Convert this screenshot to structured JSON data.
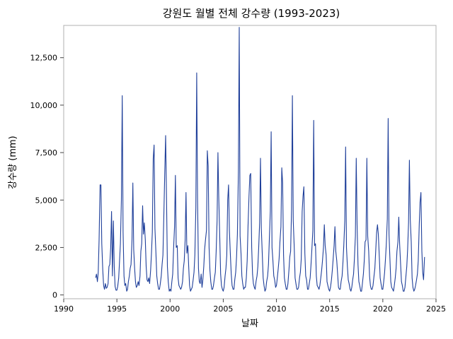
{
  "chart_data": {
    "type": "line",
    "title": "강원도 월별 전체 강수량 (1993-2023)",
    "xlabel": "날짜",
    "ylabel": "강수량 (mm)",
    "xlim": [
      1990,
      2025
    ],
    "ylim": [
      -200,
      14200
    ],
    "x_ticks": [
      1990,
      1995,
      2000,
      2005,
      2010,
      2015,
      2020,
      2025
    ],
    "x_tick_labels": [
      "1990",
      "1995",
      "2000",
      "2005",
      "2010",
      "2015",
      "2020",
      "2025"
    ],
    "y_ticks": [
      0,
      2500,
      5000,
      7500,
      10000,
      12500
    ],
    "y_tick_labels": [
      "0",
      "2,500",
      "5,000",
      "7,500",
      "10,000",
      "12,500"
    ],
    "grid": false,
    "legend": "none",
    "line_color": "#1f3f9a",
    "series": [
      {
        "x": [
          1993.0,
          1993.08,
          1993.17,
          1993.25,
          1993.33,
          1993.42,
          1993.5,
          1993.58,
          1993.67,
          1993.75,
          1993.83,
          1993.92,
          1994.0,
          1994.08,
          1994.17,
          1994.25,
          1994.33,
          1994.42,
          1994.5,
          1994.58,
          1994.67,
          1994.75,
          1994.83,
          1994.92,
          1995.0,
          1995.08,
          1995.17,
          1995.25,
          1995.33,
          1995.42,
          1995.5,
          1995.58,
          1995.67,
          1995.75,
          1995.83,
          1995.92,
          1996.0,
          1996.08,
          1996.17,
          1996.25,
          1996.33,
          1996.42,
          1996.5,
          1996.58,
          1996.67,
          1996.75,
          1996.83,
          1996.92,
          1997.0,
          1997.08,
          1997.17,
          1997.25,
          1997.33,
          1997.42,
          1997.5,
          1997.58,
          1997.67,
          1997.75,
          1997.83,
          1997.92,
          1998.0,
          1998.08,
          1998.17,
          1998.25,
          1998.33,
          1998.42,
          1998.5,
          1998.58,
          1998.67,
          1998.75,
          1998.83,
          1998.92,
          1999.0,
          1999.08,
          1999.17,
          1999.25,
          1999.33,
          1999.42,
          1999.5,
          1999.58,
          1999.67,
          1999.75,
          1999.83,
          1999.92,
          2000.0,
          2000.08,
          2000.17,
          2000.25,
          2000.33,
          2000.42,
          2000.5,
          2000.58,
          2000.67,
          2000.75,
          2000.83,
          2000.92,
          2001.0,
          2001.08,
          2001.17,
          2001.25,
          2001.33,
          2001.42,
          2001.5,
          2001.58,
          2001.67,
          2001.75,
          2001.83,
          2001.92,
          2002.0,
          2002.08,
          2002.17,
          2002.25,
          2002.33,
          2002.42,
          2002.5,
          2002.58,
          2002.67,
          2002.75,
          2002.83,
          2002.92,
          2003.0,
          2003.08,
          2003.17,
          2003.25,
          2003.33,
          2003.42,
          2003.5,
          2003.58,
          2003.67,
          2003.75,
          2003.83,
          2003.92,
          2004.0,
          2004.08,
          2004.17,
          2004.25,
          2004.33,
          2004.42,
          2004.5,
          2004.58,
          2004.67,
          2004.75,
          2004.83,
          2004.92,
          2005.0,
          2005.08,
          2005.17,
          2005.25,
          2005.33,
          2005.42,
          2005.5,
          2005.58,
          2005.67,
          2005.75,
          2005.83,
          2005.92,
          2006.0,
          2006.08,
          2006.17,
          2006.25,
          2006.33,
          2006.42,
          2006.5,
          2006.58,
          2006.67,
          2006.75,
          2006.83,
          2006.92,
          2007.0,
          2007.08,
          2007.17,
          2007.25,
          2007.33,
          2007.42,
          2007.5,
          2007.58,
          2007.67,
          2007.75,
          2007.83,
          2007.92,
          2008.0,
          2008.08,
          2008.17,
          2008.25,
          2008.33,
          2008.42,
          2008.5,
          2008.58,
          2008.67,
          2008.75,
          2008.83,
          2008.92,
          2009.0,
          2009.08,
          2009.17,
          2009.25,
          2009.33,
          2009.42,
          2009.5,
          2009.58,
          2009.67,
          2009.75,
          2009.83,
          2009.92,
          2010.0,
          2010.08,
          2010.17,
          2010.25,
          2010.33,
          2010.42,
          2010.5,
          2010.58,
          2010.67,
          2010.75,
          2010.83,
          2010.92,
          2011.0,
          2011.08,
          2011.17,
          2011.25,
          2011.33,
          2011.42,
          2011.5,
          2011.58,
          2011.67,
          2011.75,
          2011.83,
          2011.92,
          2012.0,
          2012.08,
          2012.17,
          2012.25,
          2012.33,
          2012.42,
          2012.5,
          2012.58,
          2012.67,
          2012.75,
          2012.83,
          2012.92,
          2013.0,
          2013.08,
          2013.17,
          2013.25,
          2013.33,
          2013.42,
          2013.5,
          2013.58,
          2013.67,
          2013.75,
          2013.83,
          2013.92,
          2014.0,
          2014.08,
          2014.17,
          2014.25,
          2014.33,
          2014.42,
          2014.5,
          2014.58,
          2014.67,
          2014.75,
          2014.83,
          2014.92,
          2015.0,
          2015.08,
          2015.17,
          2015.25,
          2015.33,
          2015.42,
          2015.5,
          2015.58,
          2015.67,
          2015.75,
          2015.83,
          2015.92,
          2016.0,
          2016.08,
          2016.17,
          2016.25,
          2016.33,
          2016.42,
          2016.5,
          2016.58,
          2016.67,
          2016.75,
          2016.83,
          2016.92,
          2017.0,
          2017.08,
          2017.17,
          2017.25,
          2017.33,
          2017.42,
          2017.5,
          2017.58,
          2017.67,
          2017.75,
          2017.83,
          2017.92,
          2018.0,
          2018.08,
          2018.17,
          2018.25,
          2018.33,
          2018.42,
          2018.5,
          2018.58,
          2018.67,
          2018.75,
          2018.83,
          2018.92,
          2019.0,
          2019.08,
          2019.17,
          2019.25,
          2019.33,
          2019.42,
          2019.5,
          2019.58,
          2019.67,
          2019.75,
          2019.83,
          2019.92,
          2020.0,
          2020.08,
          2020.17,
          2020.25,
          2020.33,
          2020.42,
          2020.5,
          2020.58,
          2020.67,
          2020.75,
          2020.83,
          2020.92,
          2021.0,
          2021.08,
          2021.17,
          2021.25,
          2021.33,
          2021.42,
          2021.5,
          2021.58,
          2021.67,
          2021.75,
          2021.83,
          2021.92,
          2022.0,
          2022.08,
          2022.17,
          2022.25,
          2022.33,
          2022.42,
          2022.5,
          2022.58,
          2022.67,
          2022.75,
          2022.83,
          2022.92,
          2023.0,
          2023.08,
          2023.17,
          2023.25,
          2023.33,
          2023.42,
          2023.5,
          2023.58,
          2023.67,
          2023.75,
          2023.83,
          2023.92
        ],
        "y": [
          900,
          1100,
          700,
          1200,
          2900,
          5800,
          5800,
          2700,
          1300,
          500,
          300,
          600,
          350,
          400,
          600,
          1500,
          1600,
          2500,
          4400,
          1000,
          3900,
          1500,
          450,
          250,
          250,
          450,
          900,
          1800,
          2700,
          5000,
          10500,
          3300,
          1000,
          500,
          600,
          200,
          300,
          700,
          1000,
          1400,
          1600,
          2900,
          5900,
          2400,
          1400,
          700,
          400,
          500,
          700,
          500,
          1000,
          2300,
          2700,
          4700,
          3200,
          3800,
          2900,
          1500,
          800,
          700,
          900,
          600,
          1300,
          2200,
          3300,
          7200,
          7900,
          3500,
          2200,
          1000,
          600,
          300,
          300,
          600,
          1000,
          1600,
          2100,
          4400,
          6500,
          8400,
          5000,
          1500,
          700,
          200,
          300,
          200,
          700,
          1100,
          2400,
          3600,
          6300,
          2500,
          2600,
          900,
          500,
          400,
          300,
          400,
          700,
          1400,
          1800,
          2900,
          5400,
          2200,
          2600,
          1500,
          500,
          200,
          300,
          400,
          800,
          1200,
          2100,
          4600,
          11700,
          5000,
          1400,
          700,
          600,
          1100,
          400,
          800,
          1500,
          2400,
          2900,
          3400,
          7600,
          6800,
          2500,
          1300,
          700,
          300,
          300,
          500,
          900,
          1200,
          2300,
          3900,
          7500,
          5100,
          3000,
          1100,
          500,
          300,
          200,
          400,
          1000,
          1400,
          2100,
          5000,
          5800,
          3400,
          2100,
          1100,
          500,
          300,
          300,
          800,
          1200,
          2000,
          3200,
          6500,
          14100,
          3100,
          2200,
          1000,
          600,
          300,
          400,
          400,
          900,
          1800,
          3600,
          5200,
          6300,
          6400,
          2500,
          1100,
          600,
          400,
          300,
          700,
          1000,
          1500,
          2500,
          3800,
          7200,
          3500,
          2100,
          900,
          500,
          200,
          300,
          700,
          1000,
          1600,
          2900,
          4400,
          8600,
          2500,
          1800,
          1000,
          800,
          400,
          500,
          900,
          1400,
          1900,
          2800,
          3600,
          6700,
          5900,
          2100,
          900,
          600,
          300,
          300,
          600,
          1300,
          2000,
          2300,
          4500,
          10500,
          3900,
          2500,
          900,
          600,
          300,
          300,
          400,
          900,
          1200,
          1900,
          4400,
          5200,
          5700,
          2200,
          1000,
          800,
          300,
          300,
          600,
          900,
          1600,
          2400,
          3400,
          9200,
          2600,
          2700,
          1000,
          500,
          400,
          300,
          500,
          900,
          1300,
          1800,
          2500,
          3700,
          2600,
          2100,
          700,
          500,
          300,
          200,
          400,
          800,
          1300,
          1900,
          2600,
          3600,
          2300,
          1800,
          1100,
          400,
          300,
          300,
          700,
          1000,
          1700,
          2600,
          3900,
          7800,
          2500,
          1500,
          800,
          600,
          300,
          200,
          400,
          800,
          1100,
          1900,
          3100,
          7200,
          3700,
          1600,
          700,
          500,
          200,
          200,
          600,
          1100,
          1800,
          2800,
          2900,
          7200,
          3100,
          2300,
          1000,
          500,
          300,
          300,
          500,
          1000,
          1400,
          2300,
          3300,
          3700,
          3200,
          2000,
          900,
          600,
          300,
          300,
          700,
          1200,
          1900,
          2700,
          4000,
          9300,
          3200,
          1900,
          700,
          400,
          300,
          200,
          500,
          900,
          1400,
          2300,
          2800,
          4100,
          2700,
          1600,
          700,
          500,
          200,
          200,
          400,
          1000,
          1500,
          2400,
          3800,
          7100,
          4000,
          2800,
          900,
          400,
          200,
          300,
          500,
          800,
          1100,
          1800,
          3700,
          4900,
          5400,
          2300,
          1200,
          800,
          2000
        ]
      }
    ]
  }
}
